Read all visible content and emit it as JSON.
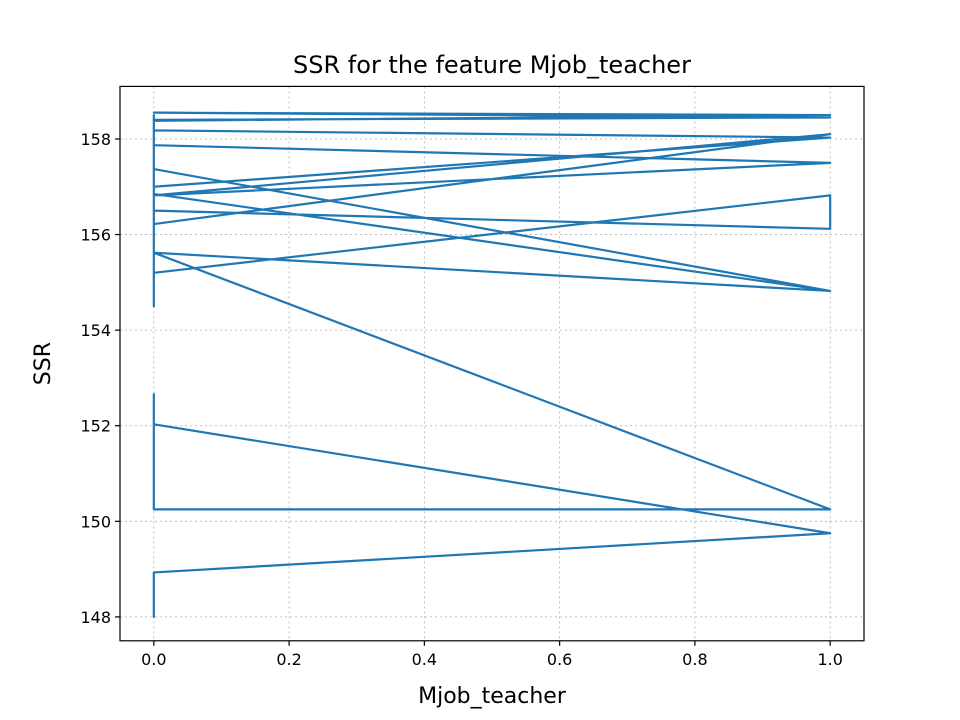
{
  "chart_data": {
    "type": "line",
    "title": "SSR for the feature Mjob_teacher",
    "xlabel": "Mjob_teacher",
    "ylabel": "SSR",
    "xlim": [
      -0.05,
      1.05
    ],
    "ylim": [
      147.5,
      159.1
    ],
    "xticks": [
      0.0,
      0.2,
      0.4,
      0.6,
      0.8,
      1.0
    ],
    "xtick_labels": [
      "0.0",
      "0.2",
      "0.4",
      "0.6",
      "0.8",
      "1.0"
    ],
    "yticks": [
      148,
      150,
      152,
      154,
      156,
      158
    ],
    "ytick_labels": [
      "148",
      "150",
      "152",
      "154",
      "156",
      "158"
    ],
    "grid": true,
    "series": [
      {
        "color": "#1f77b4",
        "x": [
          0,
          0,
          1,
          0,
          0,
          0,
          1,
          0,
          1,
          0,
          1,
          0,
          0,
          1,
          0,
          1,
          0,
          0,
          0,
          1,
          1,
          0,
          0,
          1,
          0,
          0,
          0,
          1,
          0,
          1,
          0,
          0,
          0,
          0
        ],
        "y": [
          148.0,
          148.93,
          149.75,
          152.03,
          152.66,
          150.25,
          150.25,
          155.62,
          154.82,
          157.37,
          154.82,
          156.85,
          156.22,
          158.1,
          156.82,
          157.5,
          157.87,
          158.1,
          155.2,
          156.82,
          156.12,
          156.5,
          157.0,
          158.03,
          158.18,
          158.12,
          158.38,
          158.5,
          158.55,
          158.45,
          158.4,
          158.5,
          154.5,
          158.5
        ]
      }
    ]
  }
}
